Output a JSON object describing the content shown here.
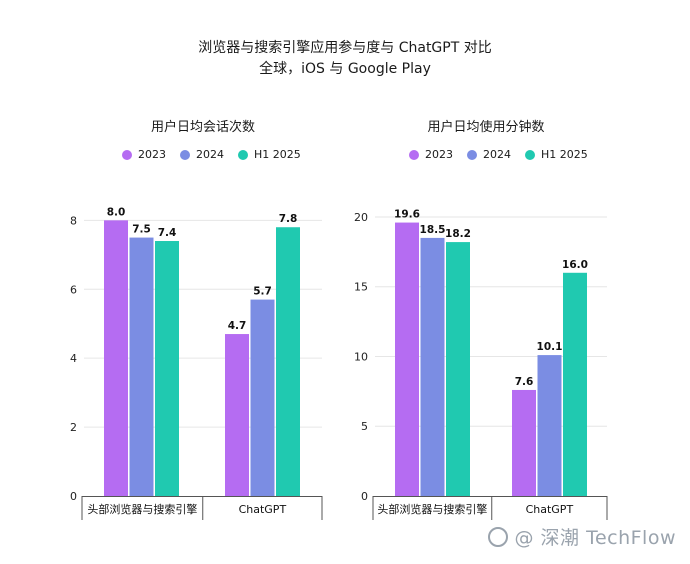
{
  "header": {
    "title": "浏览器与搜索引擎应用参与度与 ChatGPT 对比",
    "subtitle": "全球，iOS 与 Google Play"
  },
  "colors": {
    "2023": "#b56cf2",
    "2024": "#7b8de3",
    "H1 2025": "#20c9b0"
  },
  "watermark": {
    "text": "@ 深潮 TechFlow",
    "icon": "wechat-icon"
  },
  "chart_data": [
    {
      "type": "bar",
      "title": "用户日均会话次数",
      "categories": [
        "头部浏览器与搜索引擎",
        "ChatGPT"
      ],
      "series": [
        {
          "name": "2023",
          "values": [
            8.0,
            4.7
          ]
        },
        {
          "name": "2024",
          "values": [
            7.5,
            5.7
          ]
        },
        {
          "name": "H1 2025",
          "values": [
            7.4,
            7.8
          ]
        }
      ],
      "data_labels": [
        [
          "8.0",
          "4.7"
        ],
        [
          "7.5",
          "5.7"
        ],
        [
          "7.4",
          "7.8"
        ]
      ],
      "yticks": [
        "0",
        "2",
        "4",
        "6",
        "8"
      ],
      "ylim": [
        0,
        8.3
      ],
      "legend": "top",
      "grid": true
    },
    {
      "type": "bar",
      "title": "用户日均使用分钟数",
      "categories": [
        "头部浏览器与搜索引擎",
        "ChatGPT"
      ],
      "series": [
        {
          "name": "2023",
          "values": [
            19.6,
            7.6
          ]
        },
        {
          "name": "2024",
          "values": [
            18.5,
            10.1
          ]
        },
        {
          "name": "H1 2025",
          "values": [
            18.2,
            16.0
          ]
        }
      ],
      "data_labels": [
        [
          "19.6",
          "7.6"
        ],
        [
          "18.5",
          "10.1"
        ],
        [
          "18.2",
          "16.0"
        ]
      ],
      "yticks": [
        "0",
        "5",
        "10",
        "15",
        "20"
      ],
      "ylim": [
        0,
        20.5
      ],
      "legend": "top",
      "grid": true
    }
  ]
}
